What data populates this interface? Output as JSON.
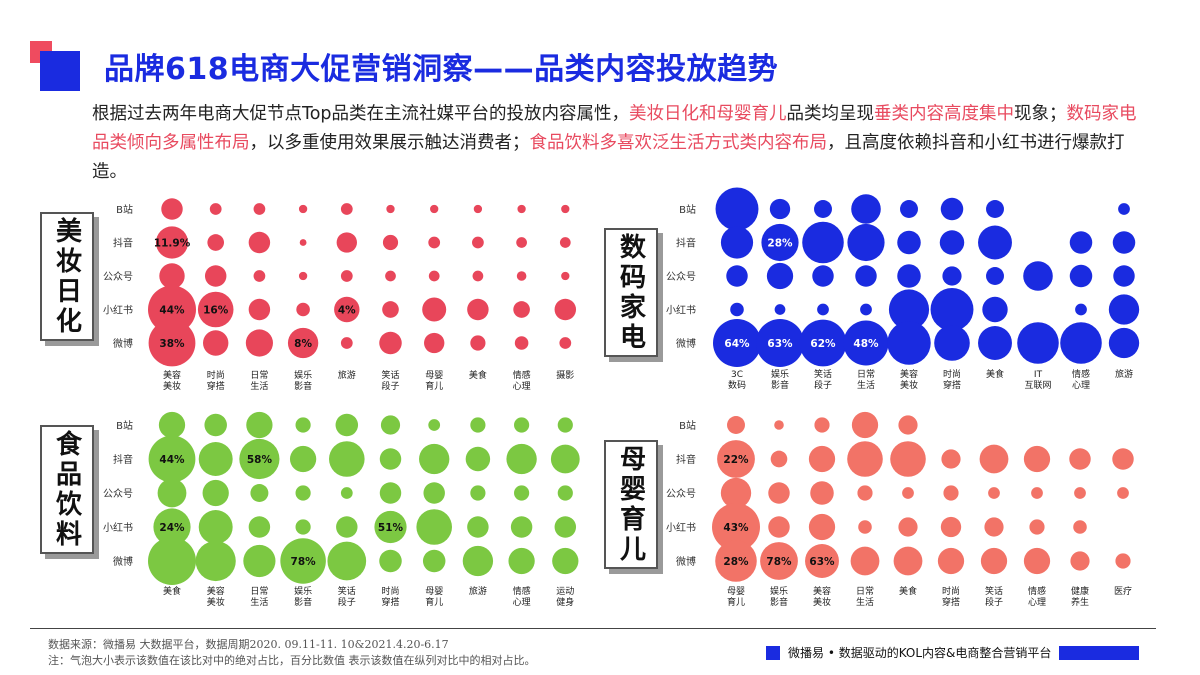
{
  "header": {
    "title": "品牌618电商大促营销洞察——品类内容投放趋势"
  },
  "description": [
    {
      "text": "根据过去两年电商大促节点Top品类在主流社媒平台的投放内容属性，",
      "hl": false
    },
    {
      "text": "美妆日化和母婴育儿",
      "hl": true
    },
    {
      "text": "品类均呈现",
      "hl": false
    },
    {
      "text": "垂类内容高度集中",
      "hl": true
    },
    {
      "text": "现象；",
      "hl": false
    },
    {
      "text": "数码家电品类倾向多属性布局",
      "hl": true
    },
    {
      "text": "，以多重使用效果展示触达消费者；",
      "hl": false
    },
    {
      "text": "食品饮料多喜欢泛生活方式类内容布局",
      "hl": true
    },
    {
      "text": "，且高度依赖抖音和小红书进行爆款打造。",
      "hl": false
    }
  ],
  "chart_data": [
    {
      "type": "scatter",
      "subtype": "bubble-matrix",
      "category": "美妆日化",
      "color": "#e8465a",
      "rows": [
        "B站",
        "抖音",
        "公众号",
        "小红书",
        "微博"
      ],
      "columns": [
        "美容美妆",
        "时尚穿搭",
        "日常生活",
        "娱乐影音",
        "旅游",
        "笑话段子",
        "母婴育儿",
        "美食",
        "情感心理",
        "摄影"
      ],
      "sizes": [
        [
          0.2,
          0.06,
          0.06,
          0.03,
          0.06,
          0.03,
          0.03,
          0.03,
          0.03,
          0.03
        ],
        [
          0.45,
          0.12,
          0.2,
          0.02,
          0.18,
          0.1,
          0.06,
          0.06,
          0.05,
          0.05
        ],
        [
          0.28,
          0.2,
          0.06,
          0.03,
          0.06,
          0.05,
          0.05,
          0.05,
          0.04,
          0.03
        ],
        [
          1.0,
          0.55,
          0.2,
          0.08,
          0.28,
          0.12,
          0.25,
          0.2,
          0.12,
          0.2
        ],
        [
          0.95,
          0.28,
          0.32,
          0.4,
          0.06,
          0.22,
          0.18,
          0.1,
          0.08,
          0.06
        ]
      ],
      "labels": [
        {
          "row": 1,
          "col": 0,
          "text": "11.9%"
        },
        {
          "row": 3,
          "col": 0,
          "text": "44%"
        },
        {
          "row": 3,
          "col": 1,
          "text": "16%"
        },
        {
          "row": 3,
          "col": 4,
          "text": "4%"
        },
        {
          "row": 4,
          "col": 0,
          "text": "38%"
        },
        {
          "row": 4,
          "col": 3,
          "text": "8%"
        }
      ]
    },
    {
      "type": "scatter",
      "subtype": "bubble-matrix",
      "category": "数码家电",
      "color": "#1a2be0",
      "rows": [
        "B站",
        "抖音",
        "公众号",
        "小红书",
        "微博"
      ],
      "columns": [
        "3C数码",
        "娱乐影音",
        "笑话段子",
        "日常生活",
        "美容美妆",
        "时尚穿搭",
        "美食",
        "IT互联网",
        "情感心理",
        "旅游"
      ],
      "sizes": [
        [
          0.8,
          0.18,
          0.14,
          0.38,
          0.14,
          0.22,
          0.14,
          0.0,
          0.0,
          0.06
        ],
        [
          0.45,
          0.6,
          0.75,
          0.6,
          0.24,
          0.26,
          0.5,
          0.0,
          0.22,
          0.22
        ],
        [
          0.2,
          0.3,
          0.2,
          0.2,
          0.24,
          0.16,
          0.14,
          0.38,
          0.22,
          0.2
        ],
        [
          0.08,
          0.05,
          0.06,
          0.06,
          0.7,
          0.8,
          0.28,
          0.0,
          0.06,
          0.4
        ],
        [
          1.0,
          1.0,
          0.95,
          0.88,
          0.82,
          0.55,
          0.5,
          0.75,
          0.75,
          0.4
        ]
      ],
      "labels": [
        {
          "row": 1,
          "col": 1,
          "text": "28%"
        },
        {
          "row": 4,
          "col": 0,
          "text": "64%"
        },
        {
          "row": 4,
          "col": 1,
          "text": "63%"
        },
        {
          "row": 4,
          "col": 2,
          "text": "62%"
        },
        {
          "row": 4,
          "col": 3,
          "text": "48%"
        }
      ]
    },
    {
      "type": "scatter",
      "subtype": "bubble-matrix",
      "category": "食品饮料",
      "color": "#7cc842",
      "rows": [
        "B站",
        "抖音",
        "公众号",
        "小红书",
        "微博"
      ],
      "columns": [
        "美食",
        "美容美妆",
        "日常生活",
        "娱乐影音",
        "笑话段子",
        "时尚穿搭",
        "母婴育儿",
        "旅游",
        "情感心理",
        "运动健身"
      ],
      "sizes": [
        [
          0.3,
          0.22,
          0.3,
          0.1,
          0.22,
          0.16,
          0.06,
          0.1,
          0.1,
          0.1
        ],
        [
          0.95,
          0.5,
          0.7,
          0.3,
          0.55,
          0.2,
          0.4,
          0.26,
          0.4,
          0.36
        ],
        [
          0.36,
          0.3,
          0.14,
          0.1,
          0.06,
          0.2,
          0.2,
          0.1,
          0.1,
          0.1
        ],
        [
          0.6,
          0.5,
          0.2,
          0.1,
          0.2,
          0.45,
          0.55,
          0.2,
          0.2,
          0.2
        ],
        [
          1.0,
          0.7,
          0.45,
          0.9,
          0.65,
          0.22,
          0.22,
          0.4,
          0.3,
          0.3
        ]
      ],
      "labels": [
        {
          "row": 1,
          "col": 0,
          "text": "44%"
        },
        {
          "row": 1,
          "col": 2,
          "text": "58%"
        },
        {
          "row": 3,
          "col": 0,
          "text": "24%"
        },
        {
          "row": 3,
          "col": 5,
          "text": "51%"
        },
        {
          "row": 4,
          "col": 3,
          "text": "78%"
        }
      ]
    },
    {
      "type": "scatter",
      "subtype": "bubble-matrix",
      "category": "母婴育儿",
      "color": "#f27367",
      "rows": [
        "B站",
        "抖音",
        "公众号",
        "小红书",
        "微博"
      ],
      "columns": [
        "母婴育儿",
        "娱乐影音",
        "美容美妆",
        "日常生活",
        "美食",
        "时尚穿搭",
        "笑话段子",
        "情感心理",
        "健康养生",
        "医疗"
      ],
      "sizes": [
        [
          0.14,
          0.04,
          0.1,
          0.3,
          0.16,
          0.0,
          0.0,
          0.0,
          0.0,
          0.0
        ],
        [
          0.62,
          0.12,
          0.3,
          0.55,
          0.55,
          0.16,
          0.36,
          0.3,
          0.2,
          0.2
        ],
        [
          0.4,
          0.2,
          0.24,
          0.1,
          0.06,
          0.1,
          0.06,
          0.06,
          0.06,
          0.06
        ],
        [
          1.0,
          0.2,
          0.3,
          0.08,
          0.16,
          0.18,
          0.16,
          0.1,
          0.08,
          0.0
        ],
        [
          0.75,
          0.62,
          0.5,
          0.36,
          0.36,
          0.3,
          0.3,
          0.3,
          0.16,
          0.1
        ]
      ],
      "labels": [
        {
          "row": 1,
          "col": 0,
          "text": "22%"
        },
        {
          "row": 3,
          "col": 0,
          "text": "43%"
        },
        {
          "row": 4,
          "col": 0,
          "text": "28%"
        },
        {
          "row": 4,
          "col": 1,
          "text": "78%"
        },
        {
          "row": 4,
          "col": 2,
          "text": "63%"
        }
      ]
    }
  ],
  "footer": {
    "source": "数据来源：微播易 大数据平台，数据周期2020. 09.11-11. 10&2021.4.20-6.17",
    "note": "注：气泡大小表示该数值在该比对中的绝对占比，百分比数值 表示该数值在纵列对比中的相对占比。",
    "brand": "微播易 • 数据驱动的KOL内容&电商整合营销平台"
  }
}
